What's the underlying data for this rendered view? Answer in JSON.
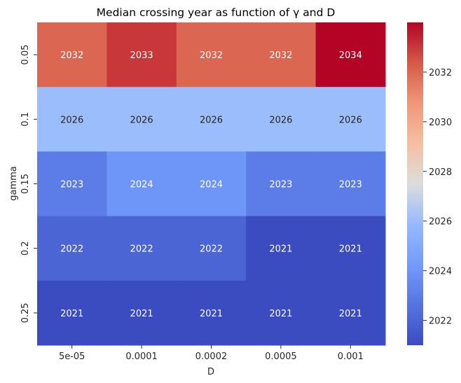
{
  "chart_data": {
    "type": "heatmap",
    "title": "Median crossing year as function of γ and D",
    "xlabel": "D",
    "ylabel": "gamma",
    "x_categories": [
      "5e-05",
      "0.0001",
      "0.0002",
      "0.0005",
      "0.001"
    ],
    "y_categories": [
      "0.05",
      "0.1",
      "0.15",
      "0.2",
      "0.25"
    ],
    "values": [
      [
        2032,
        2033,
        2032,
        2032,
        2034
      ],
      [
        2026,
        2026,
        2026,
        2026,
        2026
      ],
      [
        2023,
        2024,
        2024,
        2023,
        2023
      ],
      [
        2022,
        2022,
        2022,
        2021,
        2021
      ],
      [
        2021,
        2021,
        2021,
        2021,
        2021
      ]
    ],
    "colormap": "coolwarm",
    "colorbar": {
      "range": [
        2021,
        2034
      ],
      "ticks": [
        "2022",
        "2024",
        "2026",
        "2028",
        "2030",
        "2032"
      ]
    }
  }
}
